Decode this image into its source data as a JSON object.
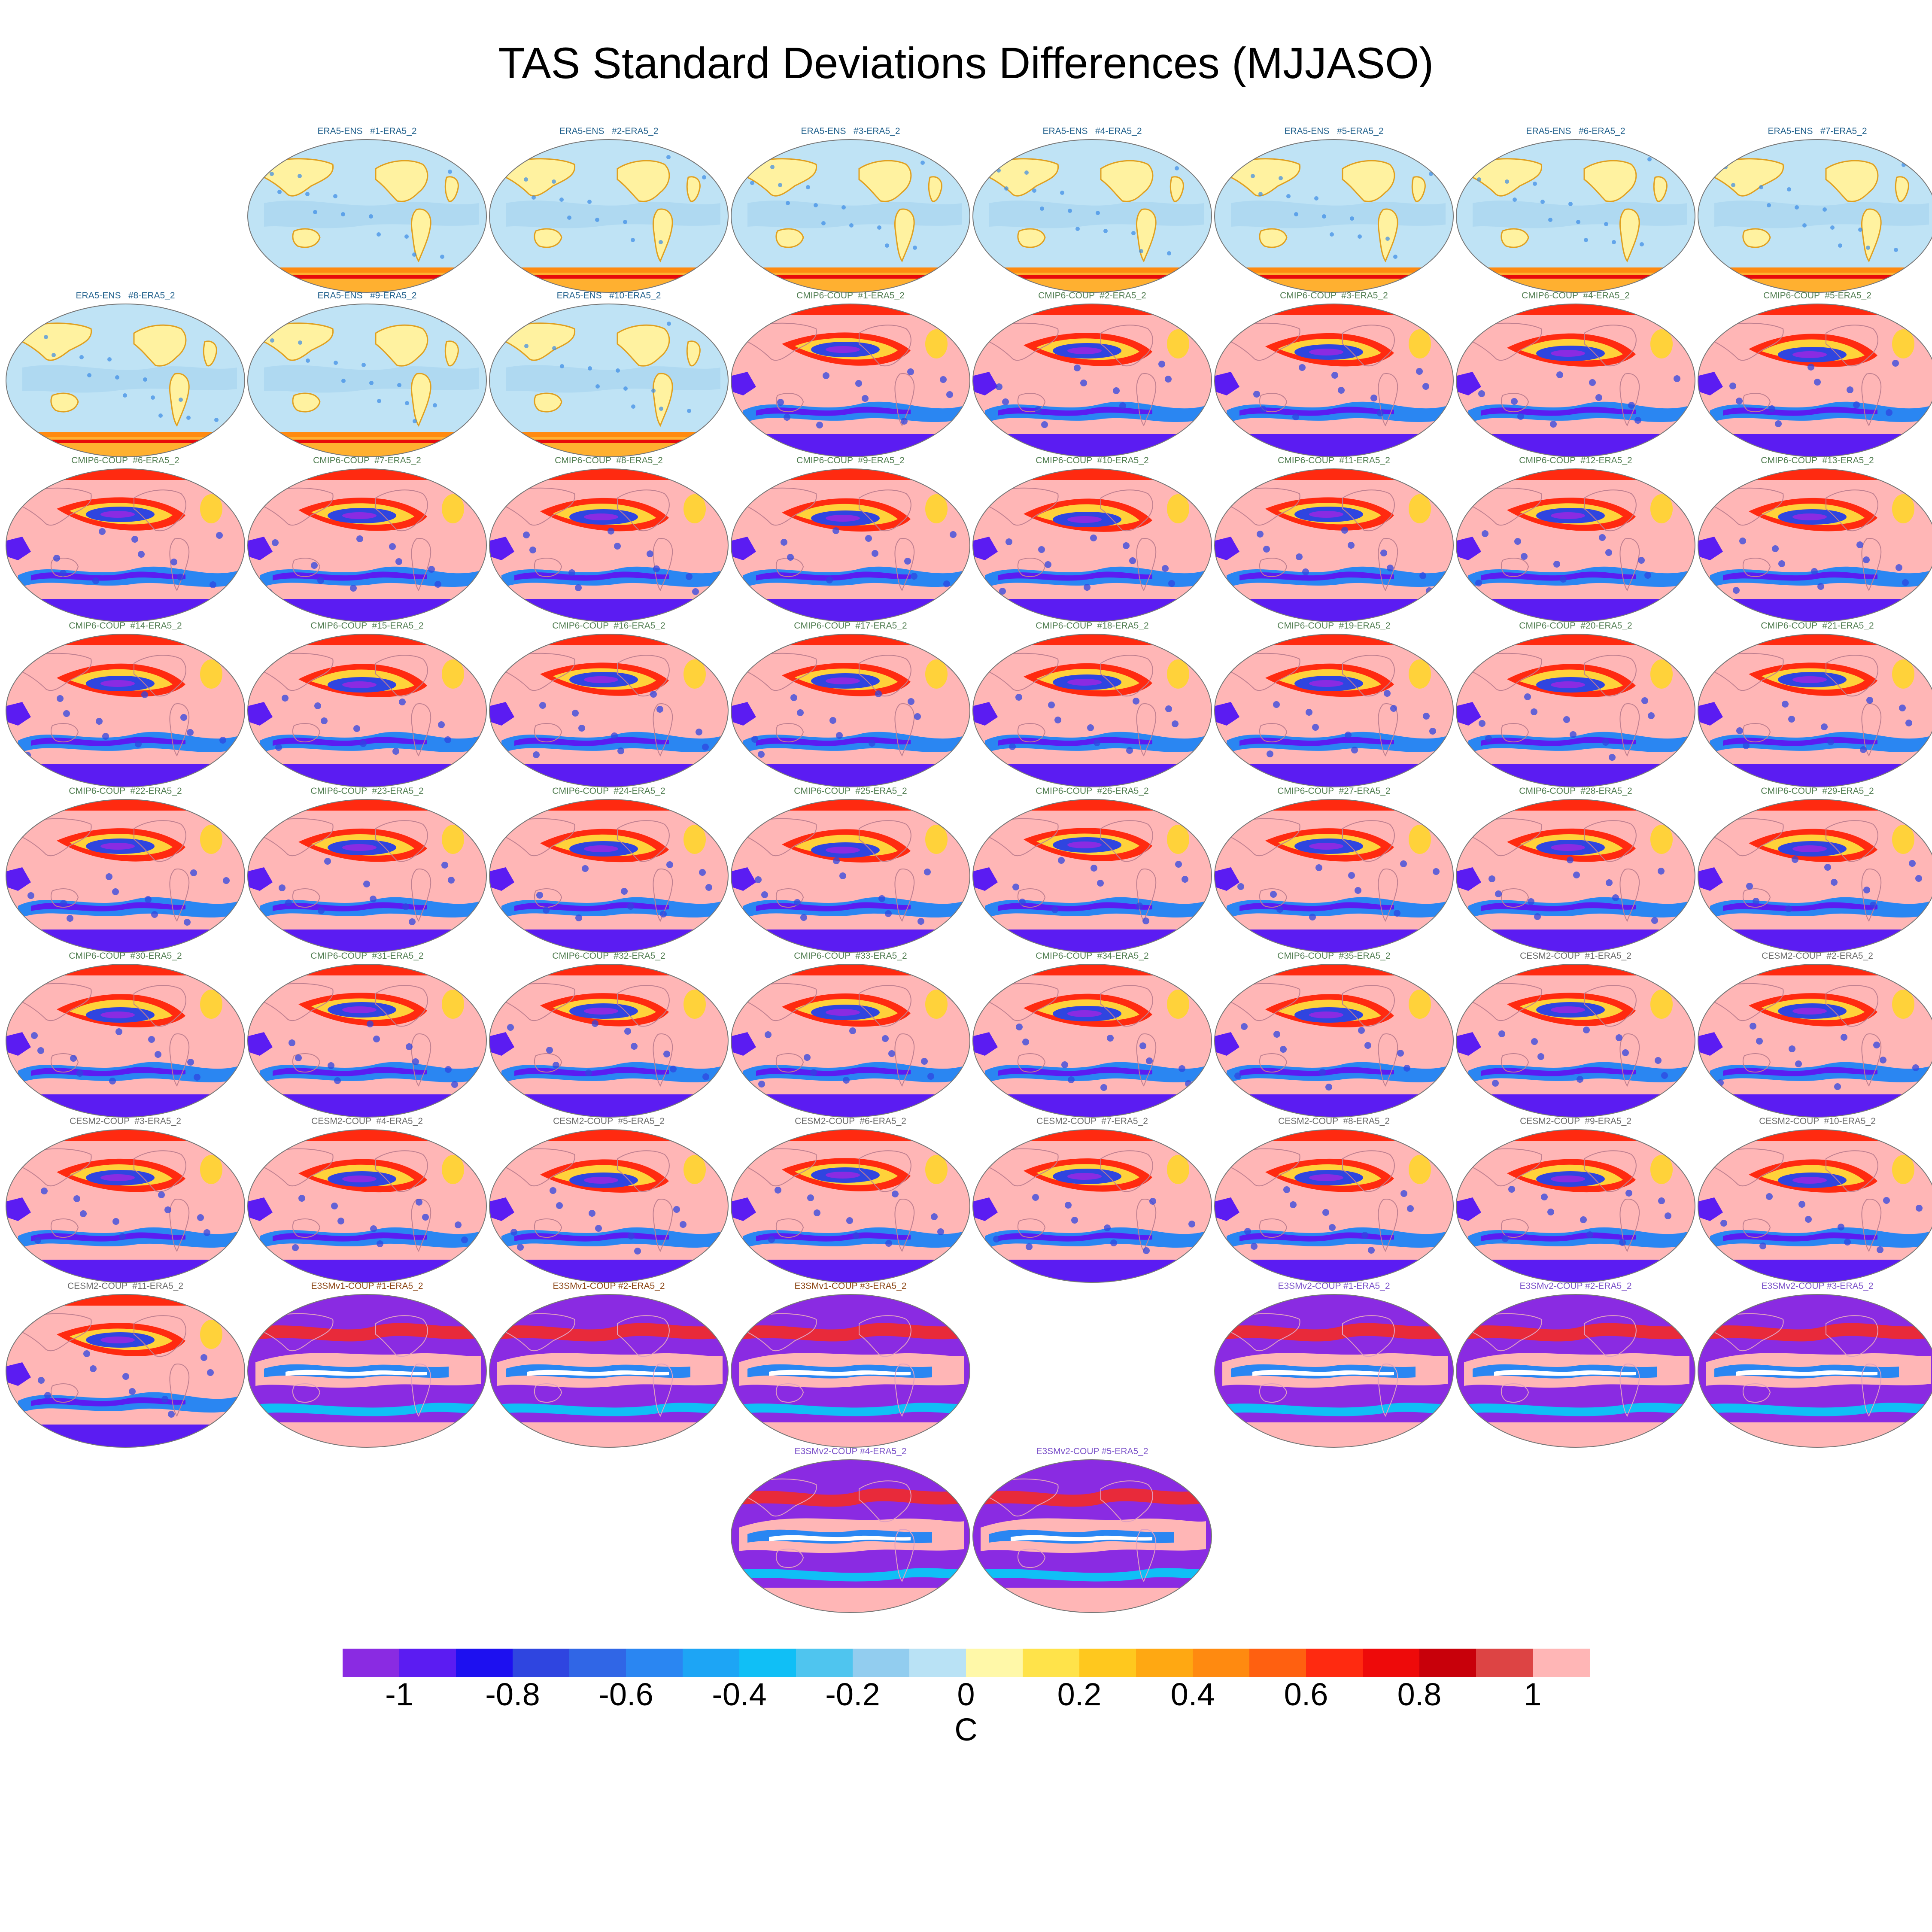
{
  "title": "TAS Standard Deviations Differences (MJJASO)",
  "colorbar": {
    "unit": "C",
    "ticks": [
      "-1",
      "-0.8",
      "-0.6",
      "-0.4",
      "-0.2",
      "0",
      "0.2",
      "0.4",
      "0.6",
      "0.8",
      "1"
    ],
    "colors": [
      "#8a2be2",
      "#5b1cf2",
      "#1d10f0",
      "#2f45e0",
      "#3066e6",
      "#2a86f2",
      "#1da5f5",
      "#10bff6",
      "#4fc5ef",
      "#92cdef",
      "#b9e2f5",
      "#fff8a8",
      "#ffe34a",
      "#ffc81e",
      "#ffa812",
      "#ff8a10",
      "#ff6010",
      "#ff2a10",
      "#ee0a0a",
      "#c8000a",
      "#dd4444",
      "#ffb6b6"
    ]
  },
  "groups": {
    "era5": {
      "color": "#1f5f8b",
      "style": "era5"
    },
    "cmip6": {
      "color": "#4f7c4f",
      "style": "coupA"
    },
    "cesm2": {
      "color": "#6b6b6b",
      "style": "coupA"
    },
    "e3smv1": {
      "color": "#8b4513",
      "style": "coupB"
    },
    "e3smv2": {
      "color": "#7b52c9",
      "style": "coupB"
    }
  },
  "panels": [
    {
      "label": "ERA5-ENS   #1-ERA5_2",
      "group": "era5",
      "row": 0,
      "col": 1
    },
    {
      "label": "ERA5-ENS   #2-ERA5_2",
      "group": "era5",
      "row": 0,
      "col": 2
    },
    {
      "label": "ERA5-ENS   #3-ERA5_2",
      "group": "era5",
      "row": 0,
      "col": 3
    },
    {
      "label": "ERA5-ENS   #4-ERA5_2",
      "group": "era5",
      "row": 0,
      "col": 4
    },
    {
      "label": "ERA5-ENS   #5-ERA5_2",
      "group": "era5",
      "row": 0,
      "col": 5
    },
    {
      "label": "ERA5-ENS   #6-ERA5_2",
      "group": "era5",
      "row": 0,
      "col": 6
    },
    {
      "label": "ERA5-ENS   #7-ERA5_2",
      "group": "era5",
      "row": 0,
      "col": 7
    },
    {
      "label": "ERA5-ENS   #8-ERA5_2",
      "group": "era5",
      "row": 1,
      "col": 0
    },
    {
      "label": "ERA5-ENS   #9-ERA5_2",
      "group": "era5",
      "row": 1,
      "col": 1
    },
    {
      "label": "ERA5-ENS   #10-ERA5_2",
      "group": "era5",
      "row": 1,
      "col": 2
    },
    {
      "label": "CMIP6-COUP  #1-ERA5_2",
      "group": "cmip6",
      "row": 1,
      "col": 3
    },
    {
      "label": "CMIP6-COUP  #2-ERA5_2",
      "group": "cmip6",
      "row": 1,
      "col": 4
    },
    {
      "label": "CMIP6-COUP  #3-ERA5_2",
      "group": "cmip6",
      "row": 1,
      "col": 5
    },
    {
      "label": "CMIP6-COUP  #4-ERA5_2",
      "group": "cmip6",
      "row": 1,
      "col": 6
    },
    {
      "label": "CMIP6-COUP  #5-ERA5_2",
      "group": "cmip6",
      "row": 1,
      "col": 7
    },
    {
      "label": "CMIP6-COUP  #6-ERA5_2",
      "group": "cmip6",
      "row": 2,
      "col": 0
    },
    {
      "label": "CMIP6-COUP  #7-ERA5_2",
      "group": "cmip6",
      "row": 2,
      "col": 1
    },
    {
      "label": "CMIP6-COUP  #8-ERA5_2",
      "group": "cmip6",
      "row": 2,
      "col": 2
    },
    {
      "label": "CMIP6-COUP  #9-ERA5_2",
      "group": "cmip6",
      "row": 2,
      "col": 3
    },
    {
      "label": "CMIP6-COUP  #10-ERA5_2",
      "group": "cmip6",
      "row": 2,
      "col": 4
    },
    {
      "label": "CMIP6-COUP  #11-ERA5_2",
      "group": "cmip6",
      "row": 2,
      "col": 5
    },
    {
      "label": "CMIP6-COUP  #12-ERA5_2",
      "group": "cmip6",
      "row": 2,
      "col": 6
    },
    {
      "label": "CMIP6-COUP  #13-ERA5_2",
      "group": "cmip6",
      "row": 2,
      "col": 7
    },
    {
      "label": "CMIP6-COUP  #14-ERA5_2",
      "group": "cmip6",
      "row": 3,
      "col": 0
    },
    {
      "label": "CMIP6-COUP  #15-ERA5_2",
      "group": "cmip6",
      "row": 3,
      "col": 1
    },
    {
      "label": "CMIP6-COUP  #16-ERA5_2",
      "group": "cmip6",
      "row": 3,
      "col": 2
    },
    {
      "label": "CMIP6-COUP  #17-ERA5_2",
      "group": "cmip6",
      "row": 3,
      "col": 3
    },
    {
      "label": "CMIP6-COUP  #18-ERA5_2",
      "group": "cmip6",
      "row": 3,
      "col": 4
    },
    {
      "label": "CMIP6-COUP  #19-ERA5_2",
      "group": "cmip6",
      "row": 3,
      "col": 5
    },
    {
      "label": "CMIP6-COUP  #20-ERA5_2",
      "group": "cmip6",
      "row": 3,
      "col": 6
    },
    {
      "label": "CMIP6-COUP  #21-ERA5_2",
      "group": "cmip6",
      "row": 3,
      "col": 7
    },
    {
      "label": "CMIP6-COUP  #22-ERA5_2",
      "group": "cmip6",
      "row": 4,
      "col": 0
    },
    {
      "label": "CMIP6-COUP  #23-ERA5_2",
      "group": "cmip6",
      "row": 4,
      "col": 1
    },
    {
      "label": "CMIP6-COUP  #24-ERA5_2",
      "group": "cmip6",
      "row": 4,
      "col": 2
    },
    {
      "label": "CMIP6-COUP  #25-ERA5_2",
      "group": "cmip6",
      "row": 4,
      "col": 3
    },
    {
      "label": "CMIP6-COUP  #26-ERA5_2",
      "group": "cmip6",
      "row": 4,
      "col": 4
    },
    {
      "label": "CMIP6-COUP  #27-ERA5_2",
      "group": "cmip6",
      "row": 4,
      "col": 5
    },
    {
      "label": "CMIP6-COUP  #28-ERA5_2",
      "group": "cmip6",
      "row": 4,
      "col": 6
    },
    {
      "label": "CMIP6-COUP  #29-ERA5_2",
      "group": "cmip6",
      "row": 4,
      "col": 7
    },
    {
      "label": "CMIP6-COUP  #30-ERA5_2",
      "group": "cmip6",
      "row": 5,
      "col": 0
    },
    {
      "label": "CMIP6-COUP  #31-ERA5_2",
      "group": "cmip6",
      "row": 5,
      "col": 1
    },
    {
      "label": "CMIP6-COUP  #32-ERA5_2",
      "group": "cmip6",
      "row": 5,
      "col": 2
    },
    {
      "label": "CMIP6-COUP  #33-ERA5_2",
      "group": "cmip6",
      "row": 5,
      "col": 3
    },
    {
      "label": "CMIP6-COUP  #34-ERA5_2",
      "group": "cmip6",
      "row": 5,
      "col": 4
    },
    {
      "label": "CMIP6-COUP  #35-ERA5_2",
      "group": "cmip6",
      "row": 5,
      "col": 5
    },
    {
      "label": "CESM2-COUP  #1-ERA5_2",
      "group": "cesm2",
      "row": 5,
      "col": 6
    },
    {
      "label": "CESM2-COUP  #2-ERA5_2",
      "group": "cesm2",
      "row": 5,
      "col": 7
    },
    {
      "label": "CESM2-COUP  #3-ERA5_2",
      "group": "cesm2",
      "row": 6,
      "col": 0
    },
    {
      "label": "CESM2-COUP  #4-ERA5_2",
      "group": "cesm2",
      "row": 6,
      "col": 1
    },
    {
      "label": "CESM2-COUP  #5-ERA5_2",
      "group": "cesm2",
      "row": 6,
      "col": 2
    },
    {
      "label": "CESM2-COUP  #6-ERA5_2",
      "group": "cesm2",
      "row": 6,
      "col": 3
    },
    {
      "label": "CESM2-COUP  #7-ERA5_2",
      "group": "cesm2",
      "row": 6,
      "col": 4
    },
    {
      "label": "CESM2-COUP  #8-ERA5_2",
      "group": "cesm2",
      "row": 6,
      "col": 5
    },
    {
      "label": "CESM2-COUP  #9-ERA5_2",
      "group": "cesm2",
      "row": 6,
      "col": 6
    },
    {
      "label": "CESM2-COUP  #10-ERA5_2",
      "group": "cesm2",
      "row": 6,
      "col": 7
    },
    {
      "label": "CESM2-COUP  #11-ERA5_2",
      "group": "cesm2",
      "row": 7,
      "col": 0
    },
    {
      "label": "E3SMv1-COUP #1-ERA5_2",
      "group": "e3smv1",
      "row": 7,
      "col": 1
    },
    {
      "label": "E3SMv1-COUP #2-ERA5_2",
      "group": "e3smv1",
      "row": 7,
      "col": 2
    },
    {
      "label": "E3SMv1-COUP #3-ERA5_2",
      "group": "e3smv1",
      "row": 7,
      "col": 3
    },
    {
      "label": "E3SMv2-COUP #1-ERA5_2",
      "group": "e3smv2",
      "row": 7,
      "col": 5
    },
    {
      "label": "E3SMv2-COUP #2-ERA5_2",
      "group": "e3smv2",
      "row": 7,
      "col": 6
    },
    {
      "label": "E3SMv2-COUP #3-ERA5_2",
      "group": "e3smv2",
      "row": 7,
      "col": 7
    },
    {
      "label": "E3SMv2-COUP #4-ERA5_2",
      "group": "e3smv2",
      "row": 8,
      "col": 3
    },
    {
      "label": "E3SMv2-COUP #5-ERA5_2",
      "group": "e3smv2",
      "row": 8,
      "col": 4
    }
  ]
}
